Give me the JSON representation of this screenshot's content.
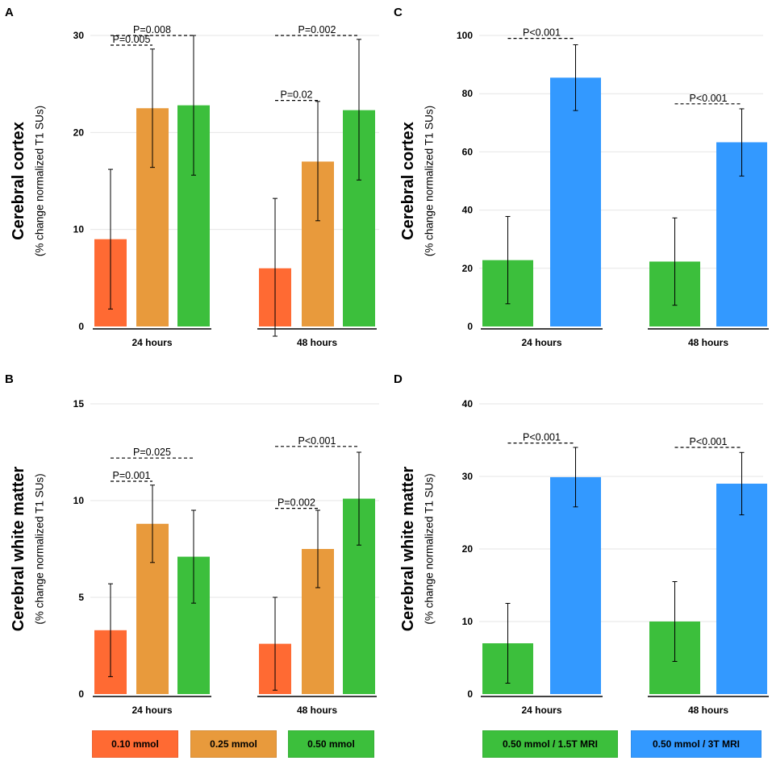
{
  "colors": {
    "mmol_010": "#ff6a33",
    "mmol_025": "#e89a3c",
    "mmol_050": "#3cbf3c",
    "mri_15t": "#3cbf3c",
    "mri_3t": "#3399ff"
  },
  "legend_left": [
    "0.10 mmol",
    "0.25 mmol",
    "0.50 mmol"
  ],
  "legend_right": [
    "0.50 mmol / 1.5T MRI",
    "0.50 mmol / 3T MRI"
  ],
  "chart_data": [
    {
      "panel": "A",
      "type": "bar",
      "ylabel_main": "Cerebral cortex",
      "ylabel_sub": "(% change normalized T1 SUs)",
      "ylim": [
        0,
        30
      ],
      "yticks": [
        0,
        10,
        20,
        30
      ],
      "categories": [
        "24 hours",
        "48 hours"
      ],
      "series": [
        {
          "name": "0.10 mmol",
          "color_key": "mmol_010",
          "values": [
            9.0,
            6.0
          ],
          "err_low": [
            1.8,
            -1.0
          ],
          "err_high": [
            16.2,
            13.2
          ]
        },
        {
          "name": "0.25 mmol",
          "color_key": "mmol_025",
          "values": [
            22.5,
            17.0
          ],
          "err_low": [
            16.4,
            10.9
          ],
          "err_high": [
            28.6,
            23.2
          ]
        },
        {
          "name": "0.50 mmol",
          "color_key": "mmol_050",
          "values": [
            22.8,
            22.3
          ],
          "err_low": [
            15.6,
            15.1
          ],
          "err_high": [
            30.0,
            29.6
          ]
        }
      ],
      "annotations": [
        {
          "text": "P=0.005",
          "category": 0,
          "from": 0,
          "to": 1,
          "y": 29.0
        },
        {
          "text": "P=0.008",
          "category": 0,
          "from": 0,
          "to": 2,
          "y": 30.0
        },
        {
          "text": "P=0.02",
          "category": 1,
          "from": 0,
          "to": 1,
          "y": 23.3
        },
        {
          "text": "P=0.002",
          "category": 1,
          "from": 0,
          "to": 2,
          "y": 30.0
        }
      ]
    },
    {
      "panel": "B",
      "type": "bar",
      "ylabel_main": "Cerebral white matter",
      "ylabel_sub": "(% change normalized T1 SUs)",
      "ylim": [
        0,
        15
      ],
      "yticks": [
        0,
        5,
        10,
        15
      ],
      "categories": [
        "24 hours",
        "48 hours"
      ],
      "series": [
        {
          "name": "0.10 mmol",
          "color_key": "mmol_010",
          "values": [
            3.3,
            2.6
          ],
          "err_low": [
            0.9,
            0.2
          ],
          "err_high": [
            5.7,
            5.0
          ]
        },
        {
          "name": "0.25 mmol",
          "color_key": "mmol_025",
          "values": [
            8.8,
            7.5
          ],
          "err_low": [
            6.8,
            5.5
          ],
          "err_high": [
            10.8,
            9.5
          ]
        },
        {
          "name": "0.50 mmol",
          "color_key": "mmol_050",
          "values": [
            7.1,
            10.1
          ],
          "err_low": [
            4.7,
            7.7
          ],
          "err_high": [
            9.5,
            12.5
          ]
        }
      ],
      "annotations": [
        {
          "text": "P=0.001",
          "category": 0,
          "from": 0,
          "to": 1,
          "y": 11.0
        },
        {
          "text": "P=0.025",
          "category": 0,
          "from": 0,
          "to": 2,
          "y": 12.2
        },
        {
          "text": "P=0.002",
          "category": 1,
          "from": 0,
          "to": 1,
          "y": 9.6
        },
        {
          "text": "P<0.001",
          "category": 1,
          "from": 0,
          "to": 2,
          "y": 12.8
        }
      ]
    },
    {
      "panel": "C",
      "type": "bar",
      "ylabel_main": "Cerebral cortex",
      "ylabel_sub": "(% change normalized T1 SUs)",
      "ylim": [
        0,
        100
      ],
      "yticks": [
        0,
        20,
        40,
        60,
        80,
        100
      ],
      "categories": [
        "24 hours",
        "48 hours"
      ],
      "series": [
        {
          "name": "0.50 mmol / 1.5T MRI",
          "color_key": "mri_15t",
          "values": [
            22.8,
            22.3
          ],
          "err_low": [
            7.8,
            7.3
          ],
          "err_high": [
            37.8,
            37.3
          ]
        },
        {
          "name": "0.50 mmol / 3T MRI",
          "color_key": "mri_3t",
          "values": [
            85.5,
            63.3
          ],
          "err_low": [
            74.2,
            51.7
          ],
          "err_high": [
            96.8,
            74.8
          ]
        }
      ],
      "annotations": [
        {
          "text": "P<0.001",
          "category": 0,
          "from": 0,
          "to": 1,
          "y": 99.0
        },
        {
          "text": "P<0.001",
          "category": 1,
          "from": 0,
          "to": 1,
          "y": 76.5
        }
      ]
    },
    {
      "panel": "D",
      "type": "bar",
      "ylabel_main": "Cerebral white matter",
      "ylabel_sub": "(% change normalized T1 SUs)",
      "ylim": [
        0,
        40
      ],
      "yticks": [
        0,
        10,
        20,
        30,
        40
      ],
      "categories": [
        "24 hours",
        "48 hours"
      ],
      "series": [
        {
          "name": "0.50 mmol / 1.5T MRI",
          "color_key": "mri_15t",
          "values": [
            7.0,
            10.0
          ],
          "err_low": [
            1.5,
            4.5
          ],
          "err_high": [
            12.5,
            15.5
          ]
        },
        {
          "name": "0.50 mmol / 3T MRI",
          "color_key": "mri_3t",
          "values": [
            29.9,
            29.0
          ],
          "err_low": [
            25.8,
            24.7
          ],
          "err_high": [
            34.0,
            33.3
          ]
        }
      ],
      "annotations": [
        {
          "text": "P<0.001",
          "category": 0,
          "from": 0,
          "to": 1,
          "y": 34.6
        },
        {
          "text": "P<0.001",
          "category": 1,
          "from": 0,
          "to": 1,
          "y": 34.0
        }
      ]
    }
  ]
}
